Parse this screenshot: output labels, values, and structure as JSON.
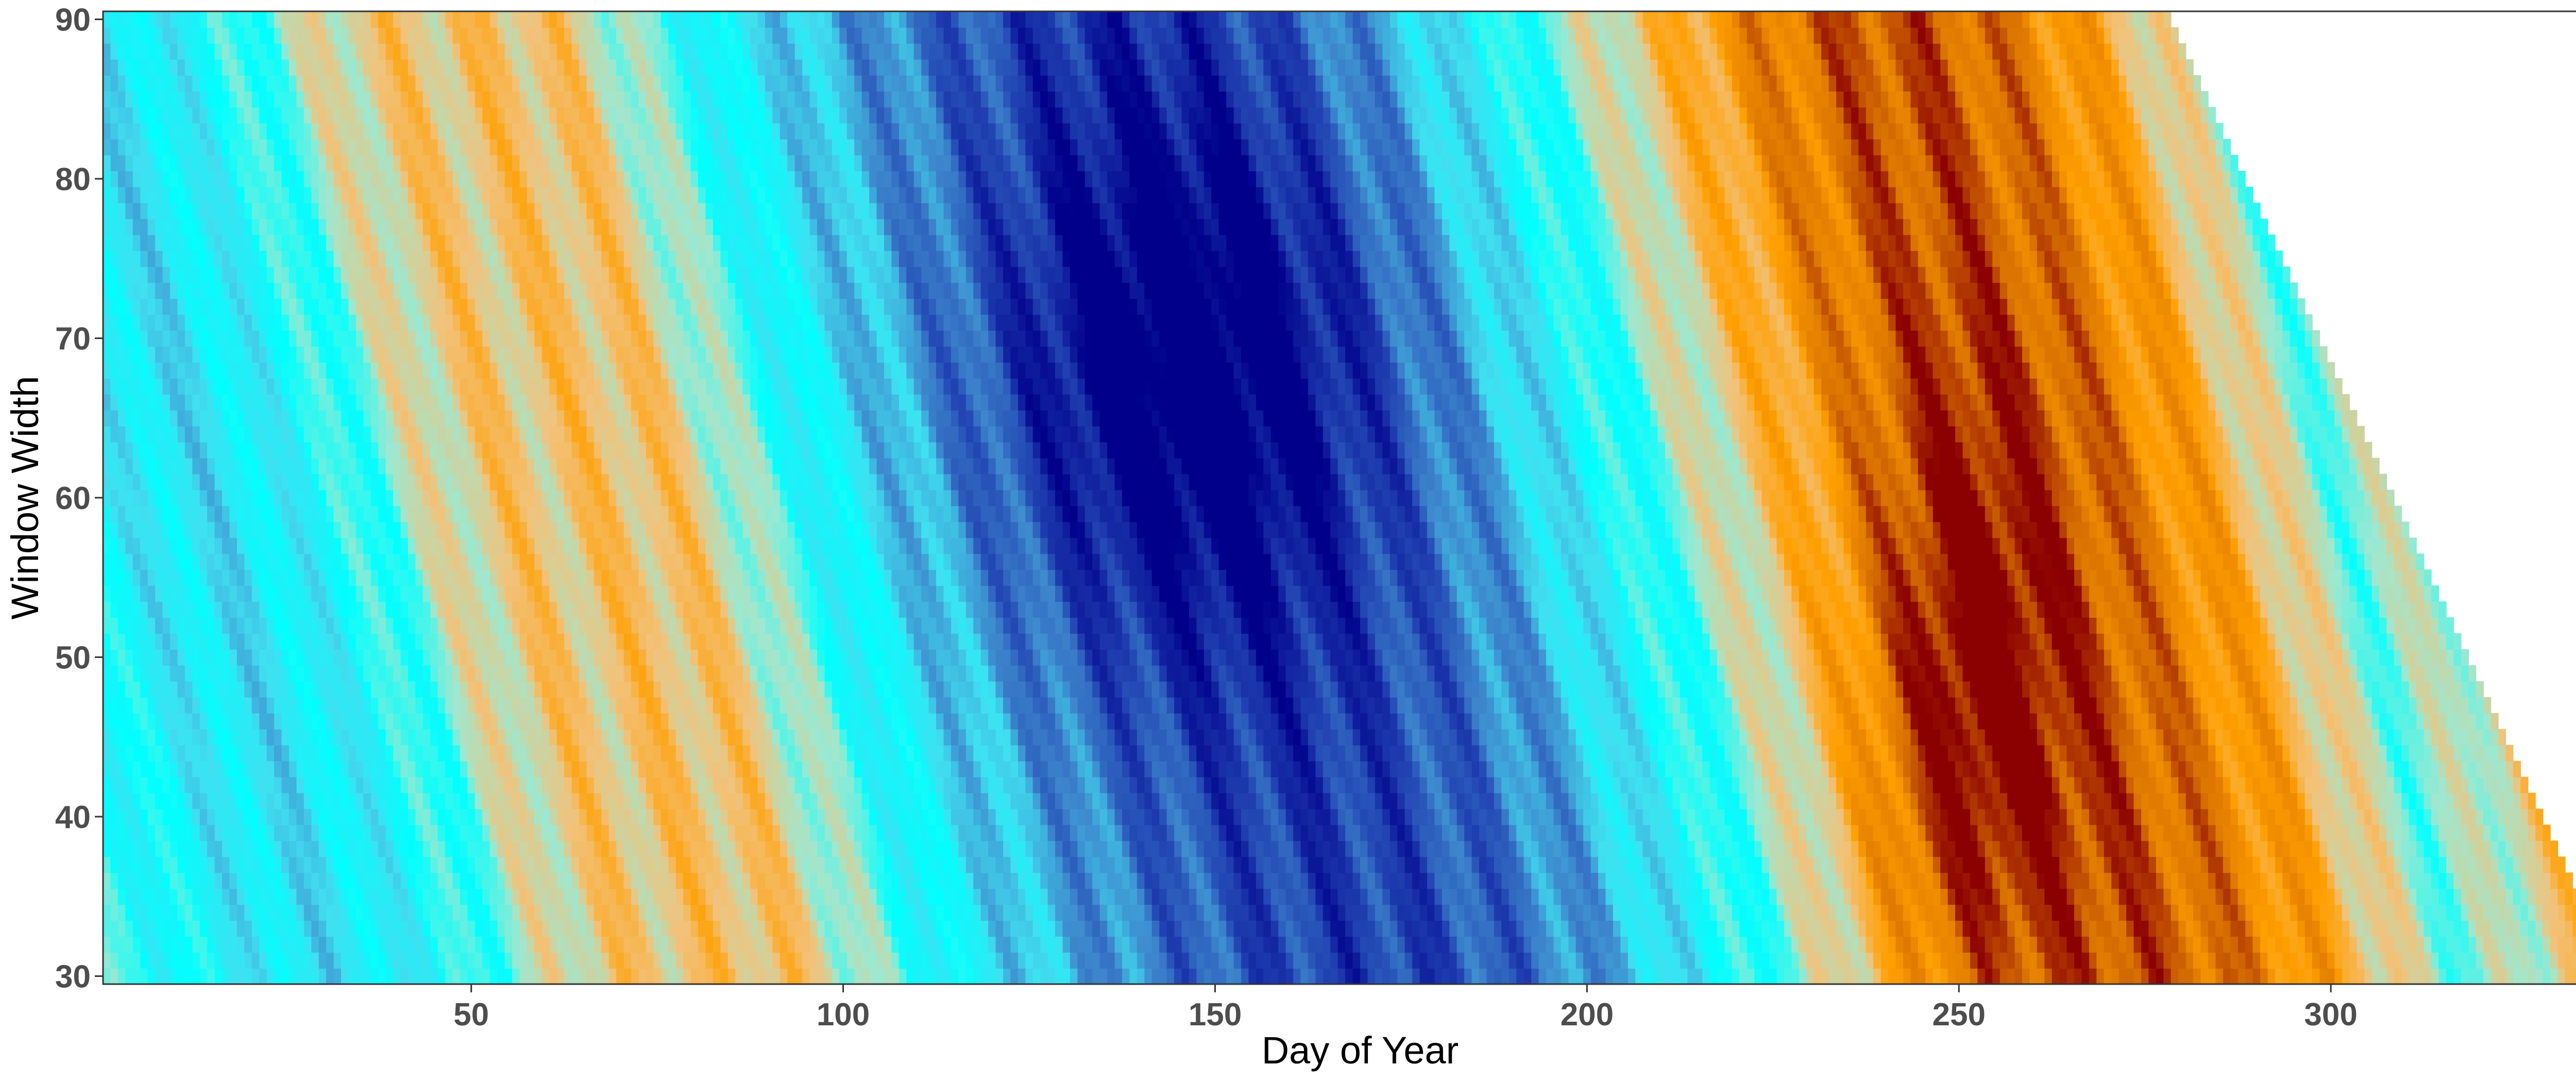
{
  "chart_data": {
    "type": "heatmap",
    "title": "",
    "xlabel": "Day of Year",
    "ylabel": "Window Width",
    "xlim": [
      1,
      338
    ],
    "ylim": [
      30,
      90
    ],
    "x_ticks": [
      50,
      100,
      150,
      200,
      250,
      300
    ],
    "y_ticks": [
      30,
      40,
      50,
      60,
      70,
      80,
      90
    ],
    "x_tick_labels": [
      "50",
      "100",
      "150",
      "200",
      "250",
      "300"
    ],
    "y_tick_labels": [
      "30",
      "40",
      "50",
      "60",
      "70",
      "80",
      "90"
    ],
    "grid": false,
    "legend": "none",
    "cell_width_days": 1,
    "cell_height_window": 1,
    "valid_region": "window width <= 90 for all days up to 278; maximum window width decreases linearly from 90 at day 278 to 30 at day 338",
    "color_scale": {
      "domain": [
        -1,
        1
      ],
      "colors": [
        "#00008b",
        "#1f3fb0",
        "#3d86cc",
        "#40e0f0",
        "#00ffff",
        "#9ee8d0",
        "#f2c27a",
        "#ff9f00",
        "#d97200",
        "#8b0000"
      ]
    },
    "dominant_bands": [
      {
        "day_start": 1,
        "day_end": 40,
        "pattern": "cyan with diagonal light-orange streaks"
      },
      {
        "day_start": 40,
        "day_end": 90,
        "pattern": "orange streaks, darkest near days 60-85 at small window widths"
      },
      {
        "day_start": 90,
        "day_end": 195,
        "pattern": "blue, darkest navy near days 130-155 at window widths 55-80"
      },
      {
        "day_start": 195,
        "day_end": 290,
        "pattern": "orange, dark red near days 240-260 at window widths 30-60"
      },
      {
        "day_start": 290,
        "day_end": 338,
        "pattern": "mixed cyan and orange"
      }
    ]
  }
}
